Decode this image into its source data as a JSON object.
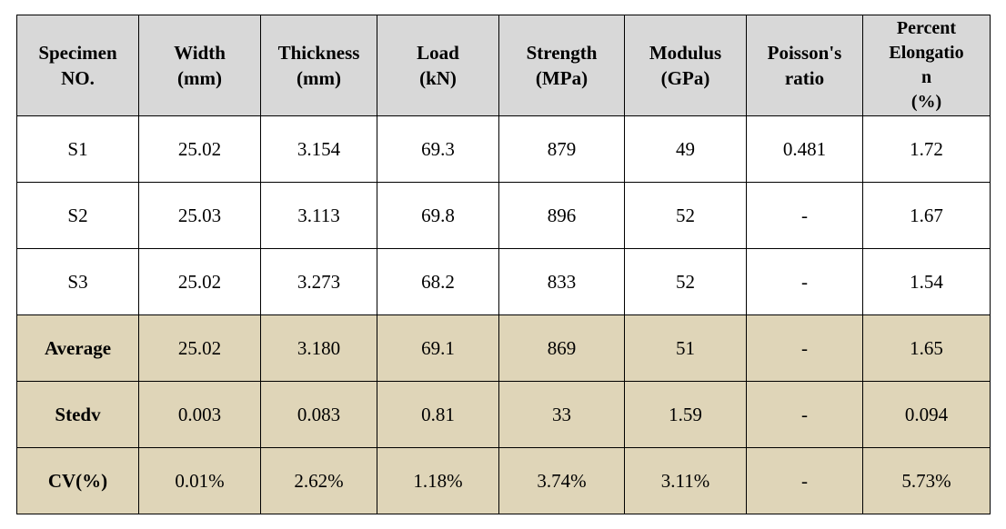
{
  "table": {
    "header_bg": "#d8d8d8",
    "summary_bg": "#dfd5b8",
    "border_color": "#000000",
    "font_size_pt": 16,
    "columns": [
      {
        "key": "specimen",
        "line1": "Specimen",
        "line2": "NO."
      },
      {
        "key": "width",
        "line1": "Width",
        "line2": "(mm)"
      },
      {
        "key": "thickness",
        "line1": "Thickness",
        "line2": "(mm)"
      },
      {
        "key": "load",
        "line1": "Load",
        "line2": "(kN)"
      },
      {
        "key": "strength",
        "line1": "Strength",
        "line2": "(MPa)"
      },
      {
        "key": "modulus",
        "line1": "Modulus",
        "line2": "(GPa)"
      },
      {
        "key": "poisson",
        "line1": "Poisson's",
        "line2": "ratio",
        "single": true
      },
      {
        "key": "elong",
        "line1": "Percent",
        "line2": "Elongation",
        "line3": "(%)",
        "triple": true
      }
    ],
    "data_rows": [
      {
        "label": "S1",
        "width": "25.02",
        "thickness": "3.154",
        "load": "69.3",
        "strength": "879",
        "modulus": "49",
        "poisson": "0.481",
        "elong": "1.72"
      },
      {
        "label": "S2",
        "width": "25.03",
        "thickness": "3.113",
        "load": "69.8",
        "strength": "896",
        "modulus": "52",
        "poisson": "-",
        "elong": "1.67"
      },
      {
        "label": "S3",
        "width": "25.02",
        "thickness": "3.273",
        "load": "68.2",
        "strength": "833",
        "modulus": "52",
        "poisson": "-",
        "elong": "1.54"
      }
    ],
    "summary_rows": [
      {
        "label": "Average",
        "width": "25.02",
        "thickness": "3.180",
        "load": "69.1",
        "strength": "869",
        "modulus": "51",
        "poisson": "-",
        "elong": "1.65"
      },
      {
        "label": "Stedv",
        "width": "0.003",
        "thickness": "0.083",
        "load": "0.81",
        "strength": "33",
        "modulus": "1.59",
        "poisson": "-",
        "elong": "0.094"
      },
      {
        "label": "CV(%)",
        "width": "0.01%",
        "thickness": "2.62%",
        "load": "1.18%",
        "strength": "3.74%",
        "modulus": "3.11%",
        "poisson": "-",
        "elong": "5.73%"
      }
    ]
  }
}
